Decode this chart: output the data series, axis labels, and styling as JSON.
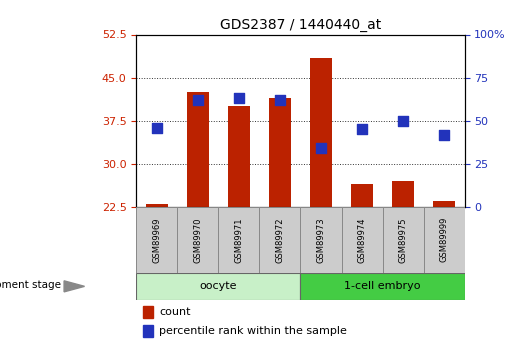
{
  "title": "GDS2387 / 1440440_at",
  "samples": [
    "GSM89969",
    "GSM89970",
    "GSM89971",
    "GSM89972",
    "GSM89973",
    "GSM89974",
    "GSM89975",
    "GSM89999"
  ],
  "count_values": [
    23.0,
    42.5,
    40.0,
    41.5,
    48.5,
    26.5,
    27.0,
    23.5
  ],
  "percentile_values": [
    46,
    62,
    63,
    62,
    34,
    45,
    50,
    42
  ],
  "ylim_left": [
    22.5,
    52.5
  ],
  "ylim_right": [
    0,
    100
  ],
  "yticks_left": [
    22.5,
    30,
    37.5,
    45,
    52.5
  ],
  "yticks_right": [
    0,
    25,
    50,
    75,
    100
  ],
  "bar_color": "#BB2200",
  "dot_color": "#2233BB",
  "bar_bottom": 22.5,
  "oocyte_color": "#C8F0C8",
  "embryo_color": "#44CC44",
  "group_label_prefix": "development stage",
  "legend_count_label": "count",
  "legend_percentile_label": "percentile rank within the sample",
  "grid_color": "#333333",
  "tick_color_left": "#CC2200",
  "tick_color_right": "#2233BB",
  "bar_width": 0.55,
  "dot_size": 45,
  "sample_box_color": "#CCCCCC"
}
